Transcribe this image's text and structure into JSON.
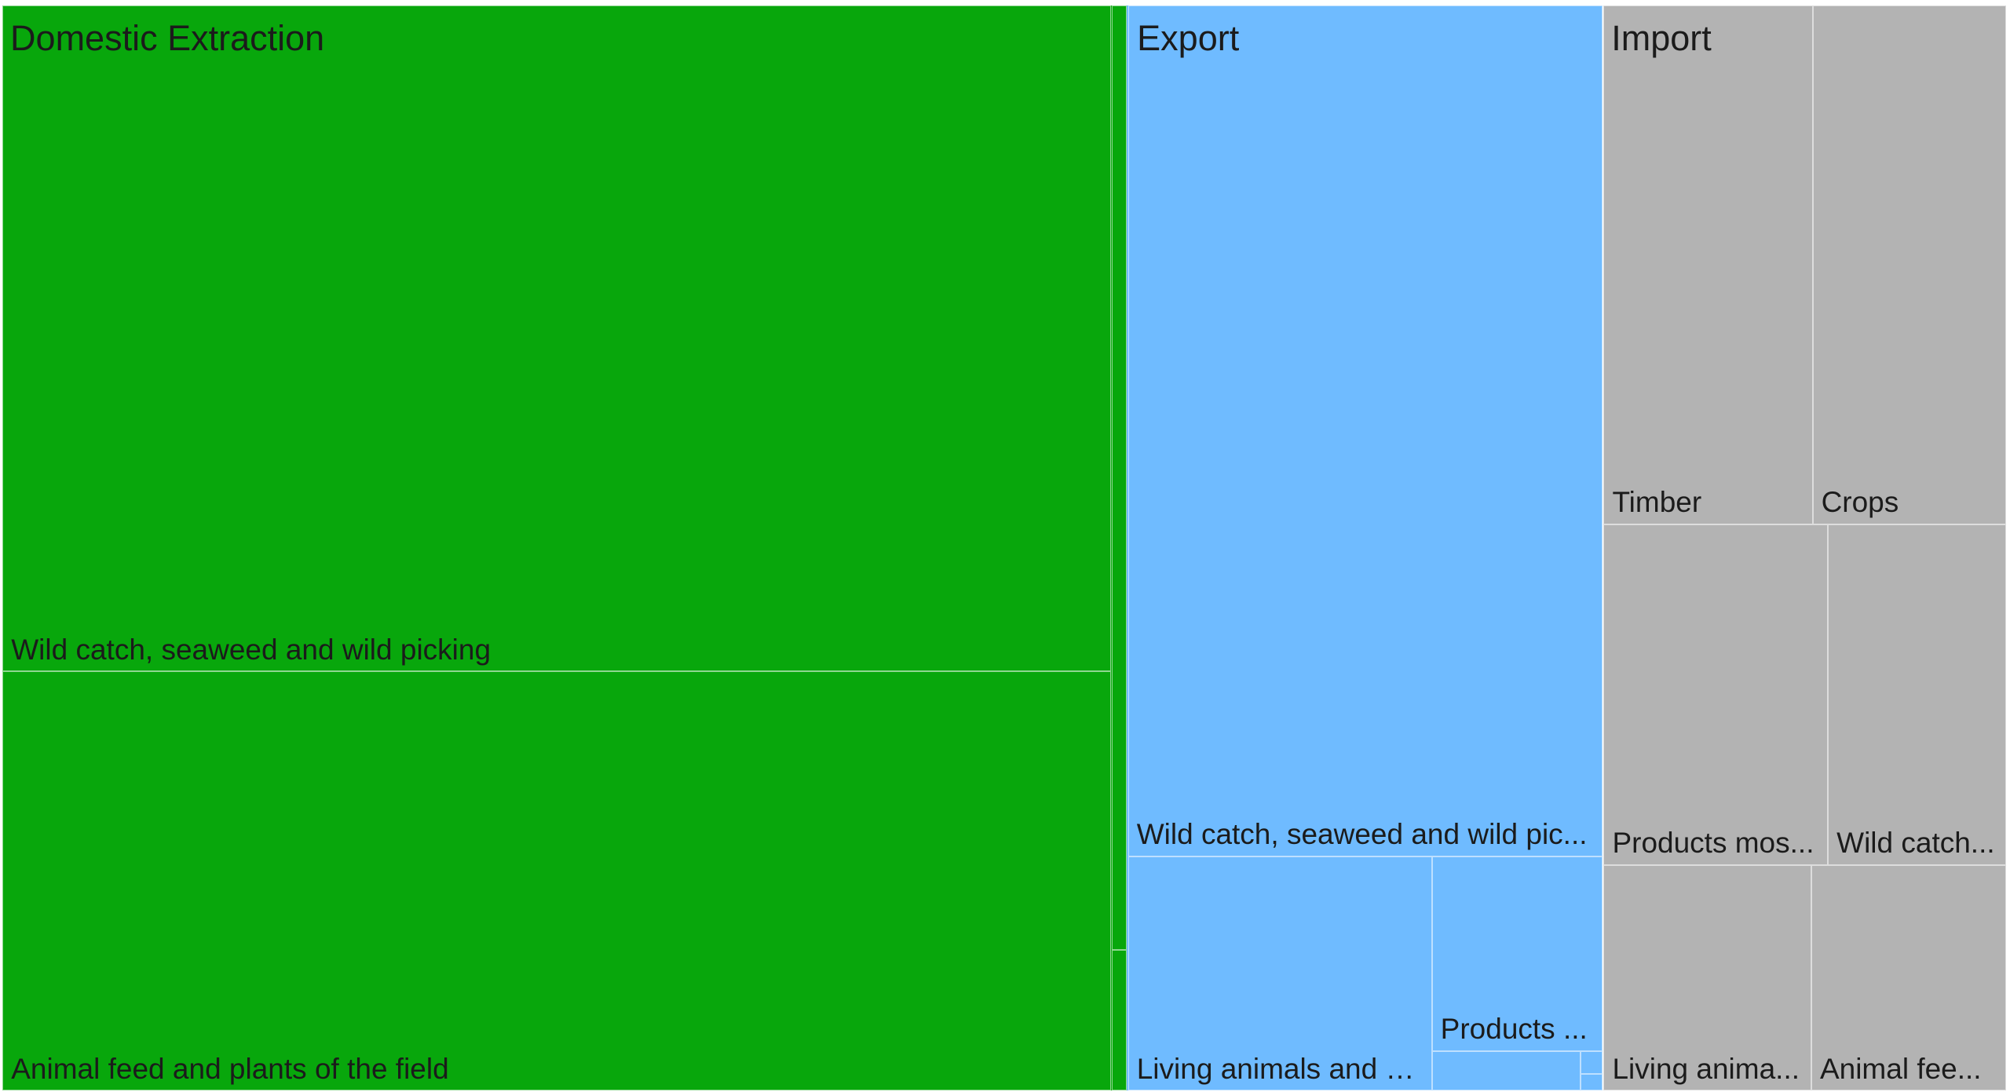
{
  "chart_data": {
    "type": "treemap",
    "groups": [
      {
        "name": "Domestic Extraction",
        "color": "#08a70c",
        "children": [
          {
            "name": "Wild catch, seaweed and wild picking",
            "label": "Wild catch, seaweed and wild picking"
          },
          {
            "name": "Animal feed and plants of the field",
            "label": "Animal feed and plants of the field"
          },
          {
            "name": "",
            "label": ""
          },
          {
            "name": "",
            "label": ""
          }
        ]
      },
      {
        "name": "Export",
        "color": "#6fbbff",
        "children": [
          {
            "name": "Wild catch, seaweed and wild picking",
            "label": "Wild catch, seaweed and wild pic..."
          },
          {
            "name": "Living animals and animal products",
            "label": "Living animals and a..."
          },
          {
            "name": "Products",
            "label": "Products ..."
          },
          {
            "name": "",
            "label": ""
          },
          {
            "name": "",
            "label": ""
          },
          {
            "name": "",
            "label": ""
          }
        ]
      },
      {
        "name": "Import",
        "color": "#b3b3b3",
        "children": [
          {
            "name": "Timber",
            "label": "Timber"
          },
          {
            "name": "Crops",
            "label": "Crops"
          },
          {
            "name": "Products mostly",
            "label": "Products mos..."
          },
          {
            "name": "Wild catch",
            "label": "Wild catch..."
          },
          {
            "name": "Living animals",
            "label": "Living anima..."
          },
          {
            "name": "Animal feed",
            "label": "Animal fee..."
          }
        ]
      }
    ]
  }
}
